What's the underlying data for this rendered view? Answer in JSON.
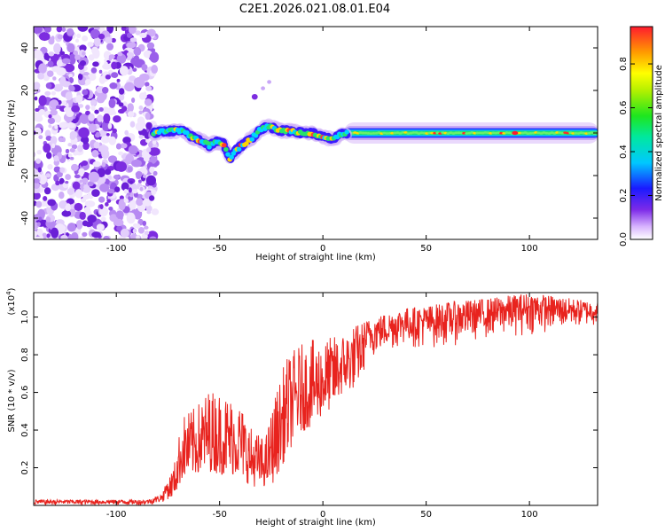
{
  "title": "C2E1.2026.021.08.01.E04",
  "chart_data": [
    {
      "type": "heatmap",
      "name": "spectrogram",
      "xlabel": "Height of straight line (km)",
      "ylabel": "Frequency (Hz)",
      "xlim": [
        -140,
        133
      ],
      "ylim": [
        -50,
        50
      ],
      "xticks": [
        -100,
        -50,
        0,
        50,
        100
      ],
      "yticks": [
        -40,
        -20,
        0,
        20,
        40
      ],
      "grid": false,
      "noise_region_x": [
        -140,
        -81
      ],
      "signal_trace": {
        "x": [
          -82,
          -75,
          -68,
          -63,
          -58,
          -55,
          -52,
          -48,
          -45,
          -42,
          -38,
          -34,
          -30,
          -26,
          -20,
          -15,
          -10,
          -5,
          0,
          5,
          10,
          20,
          40,
          60,
          80,
          100,
          120,
          133
        ],
        "y": [
          0,
          1,
          1,
          -2,
          -4,
          -6,
          -4,
          -5,
          -12,
          -8,
          -5,
          -2,
          2,
          3,
          1,
          1,
          0,
          0,
          -2,
          -3,
          0,
          0,
          0,
          0,
          0,
          0,
          0,
          0
        ]
      },
      "isolated_blobs": [
        {
          "x": -33,
          "y": 17
        },
        {
          "x": -29,
          "y": 21
        },
        {
          "x": -26,
          "y": 24
        }
      ],
      "colorbar": {
        "label": "Normalized spectral amplitude",
        "range": [
          0.0,
          0.97
        ],
        "ticks": [
          "0.0",
          "0.2",
          "0.4",
          "0.6",
          "0.8"
        ]
      }
    },
    {
      "type": "line",
      "name": "snr",
      "xlabel": "Height of straight line (km)",
      "ylabel": "SNR (10 * v/v)",
      "yscale_label": "(x10",
      "yscale_exp": "4",
      "yscale_suffix": ")",
      "xlim": [
        -140,
        133
      ],
      "ylim": [
        0,
        1.13
      ],
      "xticks": [
        -100,
        -50,
        0,
        50,
        100
      ],
      "yticks": [
        "0.2",
        "0.4",
        "0.6",
        "0.8",
        "1.0"
      ],
      "ytick_values": [
        0.2,
        0.4,
        0.6,
        0.8,
        1.0
      ],
      "color": "#e8231e",
      "series": [
        {
          "name": "SNR",
          "envelope_x": [
            -140,
            -100,
            -85,
            -78,
            -72,
            -68,
            -62,
            -55,
            -48,
            -40,
            -35,
            -28,
            -24,
            -18,
            -12,
            -5,
            0,
            5,
            10,
            15,
            20,
            25,
            30,
            40,
            50,
            60,
            80,
            100,
            120,
            133
          ],
          "envelope_low": [
            0.0,
            0.0,
            0.0,
            0.01,
            0.05,
            0.14,
            0.16,
            0.18,
            0.16,
            0.16,
            0.1,
            0.1,
            0.12,
            0.25,
            0.38,
            0.42,
            0.48,
            0.52,
            0.6,
            0.62,
            0.72,
            0.78,
            0.8,
            0.84,
            0.82,
            0.84,
            0.88,
            0.9,
            0.93,
            0.95
          ],
          "envelope_high": [
            0.03,
            0.03,
            0.03,
            0.06,
            0.22,
            0.48,
            0.52,
            0.62,
            0.6,
            0.55,
            0.42,
            0.35,
            0.55,
            0.78,
            0.85,
            0.88,
            0.88,
            0.9,
            0.92,
            0.96,
            0.98,
            1.0,
            1.02,
            1.05,
            1.06,
            1.08,
            1.1,
            1.13,
            1.1,
            1.08
          ]
        }
      ]
    }
  ]
}
